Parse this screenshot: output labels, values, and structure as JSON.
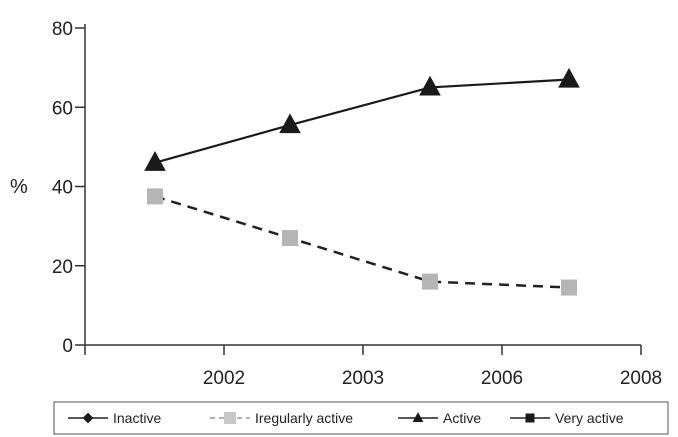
{
  "chart_data": {
    "type": "line",
    "title": "",
    "xlabel": "",
    "ylabel": "%",
    "ylim": [
      0,
      80
    ],
    "y_ticks": [
      "0",
      "20",
      "40",
      "60",
      "80"
    ],
    "x_ticks": [
      "2002",
      "2003",
      "2006",
      "2008"
    ],
    "grid": false,
    "legend_position": "bottom",
    "series": [
      {
        "name": "Inactive",
        "marker": "diamond",
        "line": "solid",
        "color": "#222222",
        "x": [],
        "values": []
      },
      {
        "name": "Iregularly active",
        "marker": "square",
        "line": "dashed",
        "color": "#b5b5b5",
        "x": [
          "2001",
          "2002/2003",
          "2003/2006",
          "2006/2008"
        ],
        "values": [
          37.5,
          27,
          16,
          14.5
        ]
      },
      {
        "name": "Active",
        "marker": "triangle",
        "line": "solid",
        "color": "#1a1a1a",
        "x": [
          "2001",
          "2002/2003",
          "2003/2006",
          "2006/2008"
        ],
        "values": [
          46,
          55.5,
          65,
          67
        ]
      },
      {
        "name": "Very active",
        "marker": "square",
        "line": "solid",
        "color": "#222222",
        "x": [],
        "values": []
      }
    ]
  }
}
